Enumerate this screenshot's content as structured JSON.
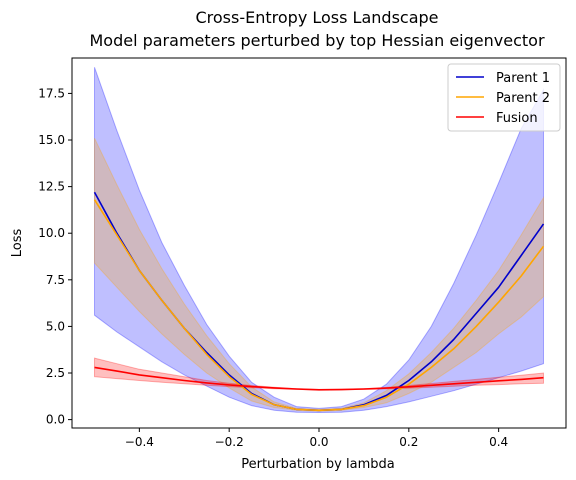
{
  "chart_data": {
    "type": "line",
    "title": "Cross-Entropy Loss Landscape",
    "subtitle": "Model parameters perturbed by top Hessian eigenvector",
    "xlabel": "Perturbation by lambda",
    "ylabel": "Loss",
    "xlim": [
      -0.55,
      0.55
    ],
    "ylim": [
      -0.45,
      19.4
    ],
    "x_ticks": [
      -0.4,
      -0.2,
      0.0,
      0.2,
      0.4
    ],
    "x_tick_labels": [
      "−0.4",
      "−0.2",
      "0.0",
      "0.2",
      "0.4"
    ],
    "y_ticks": [
      0.0,
      2.5,
      5.0,
      7.5,
      10.0,
      12.5,
      15.0,
      17.5
    ],
    "y_tick_labels": [
      "0.0",
      "2.5",
      "5.0",
      "7.5",
      "10.0",
      "12.5",
      "15.0",
      "17.5"
    ],
    "legend_position": "top-right",
    "x": [
      -0.5,
      -0.45,
      -0.4,
      -0.35,
      -0.3,
      -0.25,
      -0.2,
      -0.15,
      -0.1,
      -0.05,
      0.0,
      0.05,
      0.1,
      0.15,
      0.2,
      0.25,
      0.3,
      0.35,
      0.4,
      0.45,
      0.5
    ],
    "series": [
      {
        "name": "Parent 1",
        "color": "#0000cc",
        "fill_color": "#0000ff",
        "values": [
          12.2,
          10.0,
          8.0,
          6.4,
          4.9,
          3.6,
          2.4,
          1.4,
          0.8,
          0.55,
          0.5,
          0.55,
          0.8,
          1.3,
          2.1,
          3.1,
          4.3,
          5.7,
          7.1,
          8.8,
          10.5
        ],
        "lower": [
          5.6,
          4.7,
          3.9,
          3.1,
          2.4,
          1.8,
          1.2,
          0.75,
          0.5,
          0.4,
          0.38,
          0.4,
          0.5,
          0.7,
          0.95,
          1.25,
          1.55,
          1.9,
          2.25,
          2.6,
          3.0
        ],
        "upper": [
          18.9,
          15.5,
          12.3,
          9.5,
          7.2,
          5.1,
          3.4,
          2.0,
          1.2,
          0.7,
          0.6,
          0.7,
          1.1,
          1.9,
          3.2,
          5.0,
          7.3,
          9.9,
          12.7,
          15.6,
          17.7
        ]
      },
      {
        "name": "Parent 2",
        "color": "#ffa500",
        "fill_color": "#ffa500",
        "values": [
          11.8,
          9.9,
          8.0,
          6.4,
          4.9,
          3.5,
          2.3,
          1.35,
          0.8,
          0.55,
          0.5,
          0.55,
          0.75,
          1.2,
          1.9,
          2.8,
          3.8,
          5.0,
          6.3,
          7.7,
          9.3
        ],
        "lower": [
          8.4,
          7.1,
          5.8,
          4.6,
          3.5,
          2.5,
          1.7,
          1.0,
          0.65,
          0.5,
          0.45,
          0.5,
          0.65,
          0.9,
          1.4,
          2.0,
          2.8,
          3.6,
          4.6,
          5.5,
          6.6
        ],
        "upper": [
          15.1,
          12.6,
          10.2,
          8.1,
          6.2,
          4.5,
          3.0,
          1.75,
          0.95,
          0.6,
          0.55,
          0.6,
          0.9,
          1.55,
          2.45,
          3.6,
          4.9,
          6.4,
          8.0,
          9.9,
          11.9
        ]
      },
      {
        "name": "Fusion",
        "color": "#ff0000",
        "fill_color": "#ff0000",
        "values": [
          2.8,
          2.6,
          2.4,
          2.25,
          2.1,
          1.97,
          1.86,
          1.77,
          1.7,
          1.64,
          1.6,
          1.61,
          1.64,
          1.69,
          1.76,
          1.84,
          1.92,
          2.0,
          2.08,
          2.16,
          2.25
        ],
        "lower": [
          2.3,
          2.2,
          2.1,
          2.0,
          1.92,
          1.84,
          1.77,
          1.71,
          1.66,
          1.62,
          1.59,
          1.6,
          1.62,
          1.65,
          1.69,
          1.74,
          1.79,
          1.84,
          1.88,
          1.92,
          1.95
        ],
        "upper": [
          3.3,
          3.0,
          2.7,
          2.5,
          2.3,
          2.1,
          1.95,
          1.83,
          1.74,
          1.66,
          1.62,
          1.63,
          1.66,
          1.73,
          1.83,
          1.94,
          2.05,
          2.16,
          2.27,
          2.38,
          2.5
        ]
      }
    ]
  }
}
